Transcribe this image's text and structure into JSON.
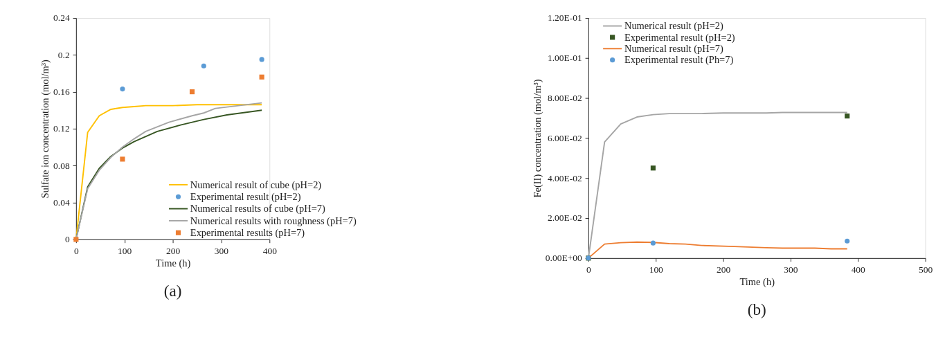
{
  "chart_data": [
    {
      "type": "line",
      "xlabel": "Time (h)",
      "ylabel": "Sulfate ion concentration (mol/m³)",
      "xlim": [
        0,
        400
      ],
      "xticks": [
        0,
        100,
        200,
        300,
        400
      ],
      "ylim": [
        0,
        0.24
      ],
      "yticks": [
        0,
        0.04,
        0.08,
        0.12,
        0.16,
        0.2,
        0.24
      ],
      "grid": false,
      "legend": "bottom right",
      "annotations": [
        "(a)"
      ],
      "series": [
        {
          "name": "Numerical result of cube (pH=2)",
          "color": "#ffc000",
          "marker": "none",
          "x": [
            0,
            24,
            48,
            72,
            96,
            120,
            144,
            200,
            250,
            384
          ],
          "values": [
            0,
            0.116,
            0.134,
            0.141,
            0.143,
            0.144,
            0.145,
            0.145,
            0.146,
            0.146
          ]
        },
        {
          "name": "Experimental result (pH=2)",
          "type": "scatter",
          "color": "#5b9bd5",
          "marker": "circle",
          "x": [
            96,
            264,
            384
          ],
          "values": [
            0.163,
            0.188,
            0.195
          ]
        },
        {
          "name": "Numerical results of cube (pH=7)",
          "color": "#375623",
          "marker": "none",
          "x": [
            0,
            24,
            48,
            72,
            96,
            120,
            168,
            216,
            264,
            312,
            384
          ],
          "values": [
            0,
            0.057,
            0.077,
            0.09,
            0.099,
            0.106,
            0.117,
            0.124,
            0.13,
            0.135,
            0.14
          ]
        },
        {
          "name": "Numerical results with roughness (pH=7)",
          "color": "#a5a5a5",
          "marker": "none",
          "x": [
            0,
            24,
            48,
            72,
            96,
            120,
            144,
            192,
            240,
            264,
            288,
            384
          ],
          "values": [
            0,
            0.055,
            0.075,
            0.089,
            0.1,
            0.109,
            0.117,
            0.127,
            0.134,
            0.137,
            0.142,
            0.148
          ]
        },
        {
          "name": "Experimental results (pH=7)",
          "type": "scatter",
          "color": "#ed7d31",
          "marker": "square",
          "x": [
            0,
            96,
            240,
            384
          ],
          "values": [
            0,
            0.087,
            0.16,
            0.176
          ]
        }
      ]
    },
    {
      "type": "line",
      "xlabel": "Time (h)",
      "ylabel": "Fe(II) concentration (mol/m³)",
      "xlim": [
        0,
        500
      ],
      "xticks": [
        0,
        100,
        200,
        300,
        400,
        500
      ],
      "ylim": [
        0,
        0.12
      ],
      "yticks": [
        {
          "value": 0,
          "label": "0.00E+00"
        },
        {
          "value": 0.02,
          "label": "2.00E-02"
        },
        {
          "value": 0.04,
          "label": "4.00E-02"
        },
        {
          "value": 0.06,
          "label": "6.00E-02"
        },
        {
          "value": 0.08,
          "label": "8.00E-02"
        },
        {
          "value": 0.1,
          "label": "1.00E-01"
        },
        {
          "value": 0.12,
          "label": "1.20E-01"
        }
      ],
      "grid": false,
      "legend": "top left",
      "annotations": [
        "(b)"
      ],
      "series": [
        {
          "name": "Numerical result (pH=2)",
          "color": "#a5a5a5",
          "marker": "none",
          "x": [
            0,
            24,
            48,
            72,
            96,
            120,
            168,
            200,
            264,
            288,
            384
          ],
          "values": [
            0,
            0.058,
            0.067,
            0.0705,
            0.0717,
            0.0722,
            0.0722,
            0.0725,
            0.0725,
            0.0728,
            0.0728
          ]
        },
        {
          "name": "Experimental result (pH=2)",
          "type": "scatter",
          "color": "#375623",
          "marker": "square",
          "x": [
            0,
            96,
            384
          ],
          "values": [
            0,
            0.045,
            0.071
          ]
        },
        {
          "name": "Numerical result (pH=7)",
          "color": "#ed7d31",
          "marker": "none",
          "x": [
            0,
            24,
            48,
            72,
            96,
            120,
            144,
            168,
            216,
            264,
            288,
            336,
            360,
            384
          ],
          "values": [
            0,
            0.007,
            0.0077,
            0.008,
            0.0078,
            0.0072,
            0.007,
            0.0063,
            0.0058,
            0.0052,
            0.005,
            0.005,
            0.0046,
            0.0046
          ]
        },
        {
          "name": "Experimental result (Ph=7)",
          "type": "scatter",
          "color": "#5b9bd5",
          "marker": "circle",
          "x": [
            0,
            96,
            384
          ],
          "values": [
            0,
            0.0075,
            0.0085
          ]
        }
      ]
    }
  ]
}
